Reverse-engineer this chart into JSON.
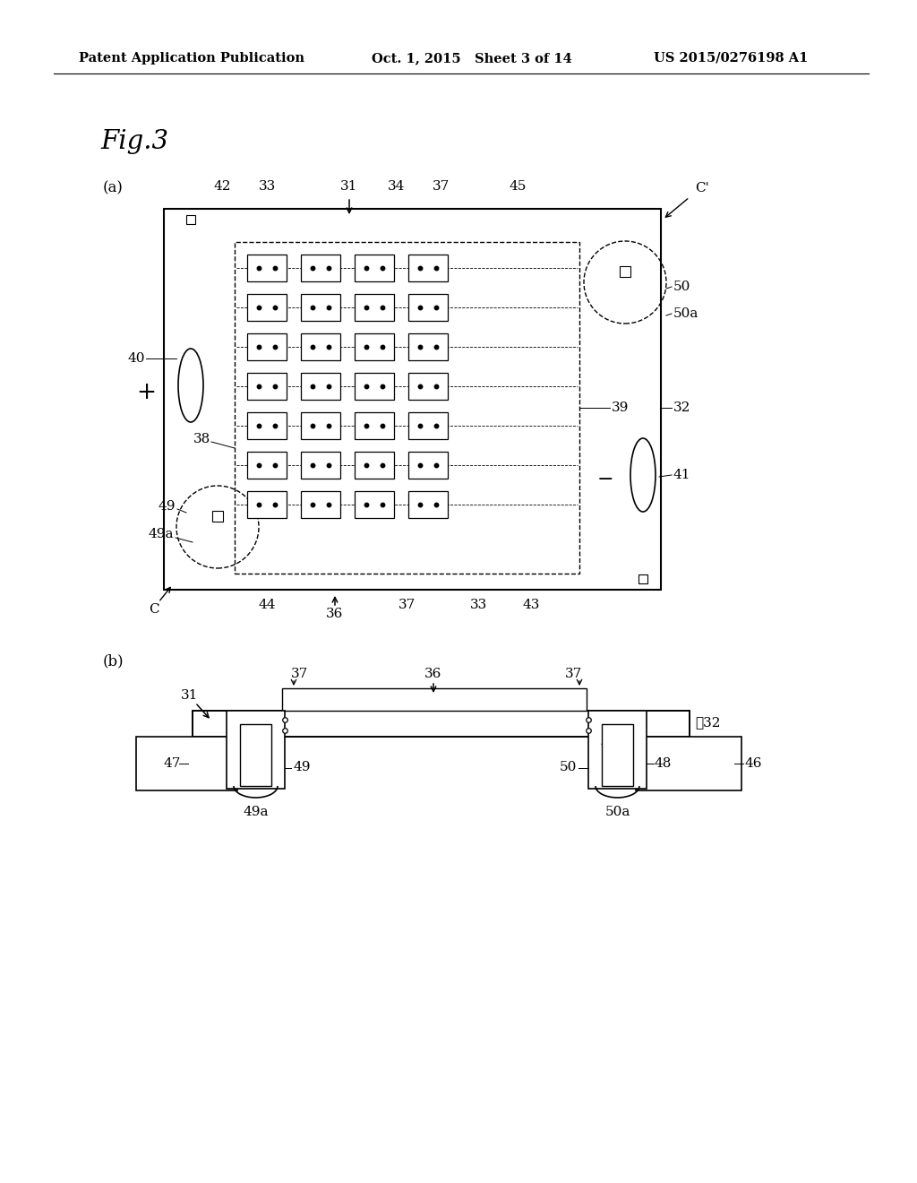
{
  "bg_color": "#ffffff",
  "header_left": "Patent Application Publication",
  "header_mid": "Oct. 1, 2015   Sheet 3 of 14",
  "header_right": "US 2015/0276198 A1"
}
